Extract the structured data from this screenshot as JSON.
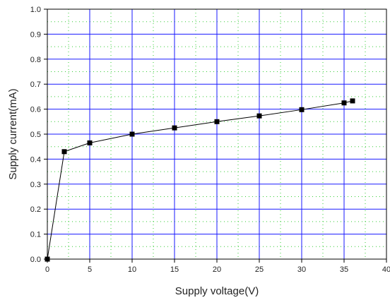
{
  "chart_data": {
    "type": "line",
    "title": "",
    "xlabel": "Supply voltage(V)",
    "ylabel": "Supply current(mA)",
    "xlim": [
      0,
      40
    ],
    "ylim": [
      0,
      1.0
    ],
    "xticks": [
      "0",
      "5",
      "10",
      "15",
      "20",
      "25",
      "30",
      "35",
      "40"
    ],
    "yticks": [
      "0.0",
      "0.1",
      "0.2",
      "0.3",
      "0.4",
      "0.5",
      "0.6",
      "0.7",
      "0.8",
      "0.9",
      "1.0"
    ],
    "grid": true,
    "legend": "none",
    "series": [
      {
        "x": [
          0,
          2,
          5,
          10,
          15,
          20,
          25,
          30,
          35,
          36
        ],
        "y": [
          0.0,
          0.43,
          0.465,
          0.5,
          0.525,
          0.55,
          0.573,
          0.598,
          0.625,
          0.633
        ]
      }
    ],
    "colors": {
      "major_grid": "#1a1aff",
      "minor_grid": "#33cc33",
      "line": "#000000",
      "marker": "#000000"
    }
  }
}
